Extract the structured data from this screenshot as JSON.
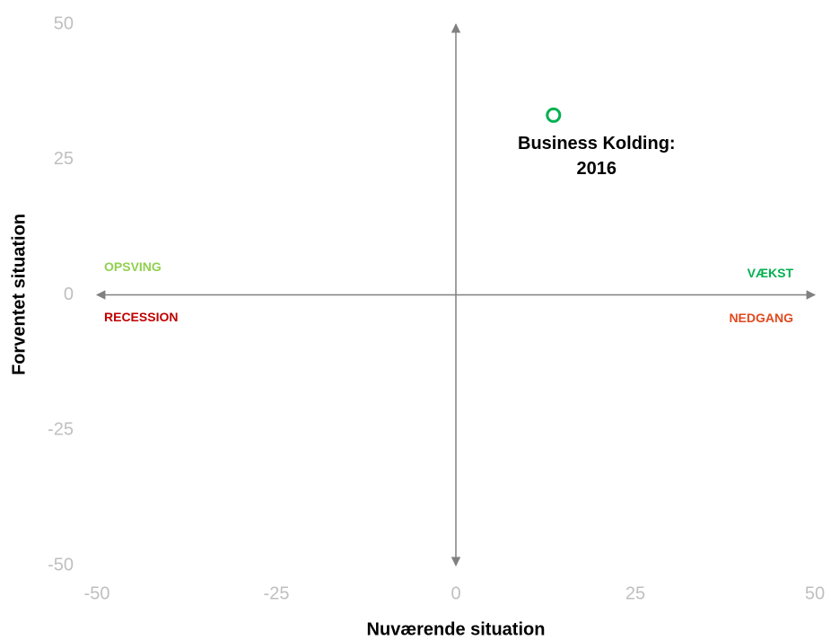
{
  "chart_data": {
    "type": "scatter",
    "xlabel": "Nuværende situation",
    "ylabel": "Forventet situation",
    "x": [
      13.6
    ],
    "values": [
      33.2
    ],
    "labels": [
      "Business Kolding: 2016"
    ],
    "color": "#00b050",
    "xlim": [
      -50,
      50
    ],
    "xticks": [
      -50,
      -25,
      0,
      25,
      50
    ],
    "ylim": [
      -50,
      50
    ],
    "yticks": [
      -50,
      -25,
      0,
      25,
      50
    ],
    "grid": false,
    "quadrants": [
      {
        "text": "OPSVING",
        "color": "#92d050",
        "corner": "upper left"
      },
      {
        "text": "VÆKST",
        "color": "#00b050",
        "corner": "upper right"
      },
      {
        "text": "RECESSION",
        "color": "#c00000",
        "corner": "lower left"
      },
      {
        "text": "NEDGANG",
        "color": "#e04a1f",
        "corner": "lower right"
      }
    ]
  }
}
